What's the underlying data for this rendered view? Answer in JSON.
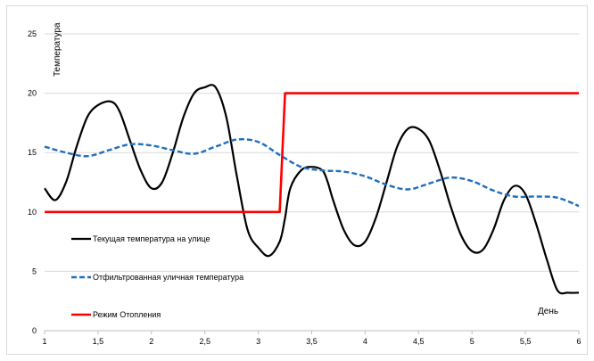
{
  "chart_data": {
    "type": "line",
    "xlabel": "День",
    "ylabel": "Температура",
    "xlim": [
      1,
      6
    ],
    "ylim": [
      0,
      25
    ],
    "x_ticks": [
      "1",
      "1,5",
      "2",
      "2,5",
      "3",
      "3,5",
      "4",
      "4,5",
      "5",
      "5,5",
      "6"
    ],
    "y_ticks": [
      "0",
      "5",
      "10",
      "15",
      "20",
      "25"
    ],
    "grid": "horizontal",
    "legend_position": "left",
    "series": [
      {
        "name": "Текущая температура на улице",
        "color": "#000000",
        "style": "solid",
        "x": [
          1.0,
          1.1,
          1.2,
          1.3,
          1.4,
          1.5,
          1.62,
          1.7,
          1.8,
          1.9,
          2.0,
          2.1,
          2.2,
          2.3,
          2.4,
          2.5,
          2.6,
          2.7,
          2.8,
          2.9,
          3.0,
          3.1,
          3.2,
          3.25,
          3.3,
          3.4,
          3.5,
          3.6,
          3.65,
          3.7,
          3.8,
          3.9,
          4.0,
          4.1,
          4.2,
          4.3,
          4.4,
          4.5,
          4.6,
          4.7,
          4.8,
          4.9,
          5.0,
          5.1,
          5.2,
          5.3,
          5.4,
          5.5,
          5.6,
          5.7,
          5.8,
          5.9,
          6.0
        ],
        "y": [
          12.0,
          11.0,
          12.5,
          15.5,
          18.0,
          19.0,
          19.3,
          18.5,
          16.0,
          13.5,
          12.0,
          12.5,
          15.0,
          18.0,
          20.0,
          20.5,
          20.5,
          18.0,
          13.0,
          8.5,
          7.0,
          6.3,
          7.5,
          9.5,
          12.0,
          13.5,
          13.8,
          13.5,
          12.5,
          11.0,
          8.5,
          7.2,
          7.5,
          9.5,
          12.5,
          15.5,
          17.0,
          17.0,
          16.0,
          13.5,
          10.5,
          8.0,
          6.7,
          6.8,
          8.5,
          11.0,
          12.2,
          11.5,
          9.0,
          6.0,
          3.4,
          3.2,
          3.2
        ]
      },
      {
        "name": "Отфильтрованная уличная температура",
        "color": "#1f6fbf",
        "style": "dashed",
        "x": [
          1.0,
          1.2,
          1.4,
          1.6,
          1.8,
          2.0,
          2.2,
          2.4,
          2.6,
          2.8,
          3.0,
          3.2,
          3.4,
          3.6,
          3.8,
          4.0,
          4.2,
          4.4,
          4.6,
          4.8,
          5.0,
          5.2,
          5.4,
          5.6,
          5.8,
          6.0
        ],
        "y": [
          15.5,
          15.0,
          14.7,
          15.2,
          15.7,
          15.6,
          15.2,
          14.9,
          15.5,
          16.1,
          15.9,
          14.8,
          13.8,
          13.5,
          13.4,
          13.0,
          12.3,
          11.9,
          12.4,
          12.9,
          12.6,
          11.8,
          11.3,
          11.3,
          11.2,
          10.5
        ]
      },
      {
        "name": "Режим Отопления",
        "color": "#ff0000",
        "style": "solid",
        "x": [
          1.0,
          3.2,
          3.25,
          6.0
        ],
        "y": [
          10,
          10,
          20,
          20
        ]
      }
    ]
  }
}
